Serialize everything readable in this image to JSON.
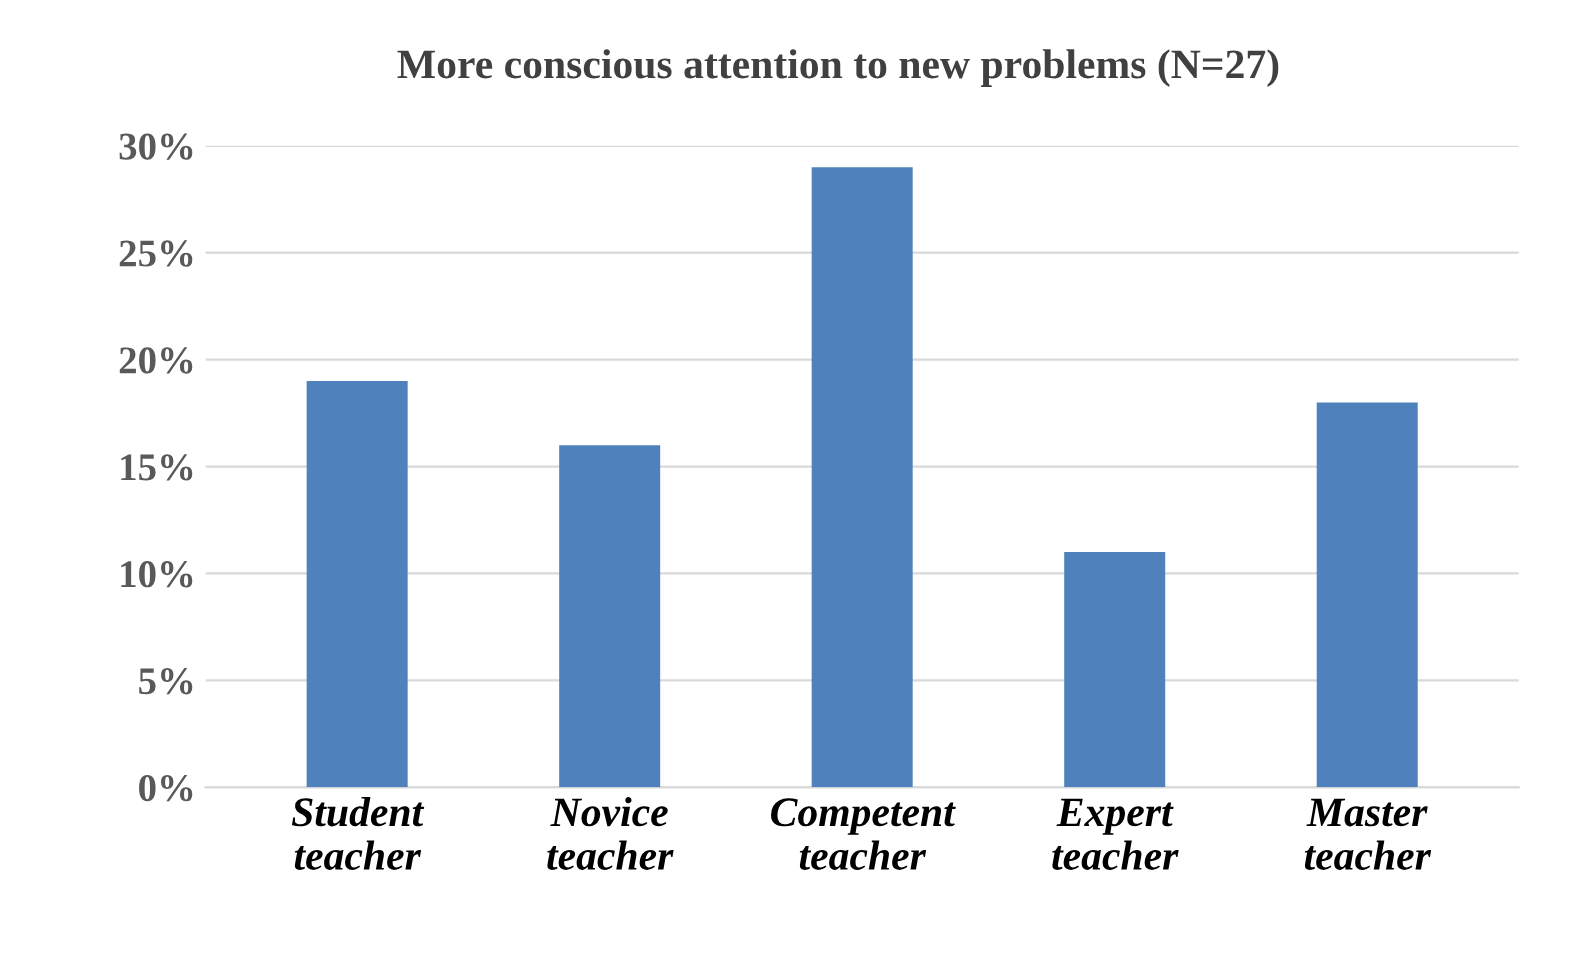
{
  "chart_data": {
    "type": "bar",
    "title": "More conscious attention to new problems (N=27)",
    "categories": [
      "Student\nteacher",
      "Novice\nteacher",
      "Competent\nteacher",
      "Expert\nteacher",
      "Master\nteacher"
    ],
    "values": [
      19,
      16,
      29,
      11,
      18
    ],
    "color": "#4f81bd",
    "ylim": [
      0,
      30
    ],
    "yticks": [
      {
        "value": 0,
        "label": "0%"
      },
      {
        "value": 5,
        "label": "5%"
      },
      {
        "value": 10,
        "label": "10%"
      },
      {
        "value": 15,
        "label": "15%"
      },
      {
        "value": 20,
        "label": "20%"
      },
      {
        "value": 25,
        "label": "25%"
      },
      {
        "value": 30,
        "label": "30%"
      }
    ],
    "grid": "y",
    "legend": false
  }
}
